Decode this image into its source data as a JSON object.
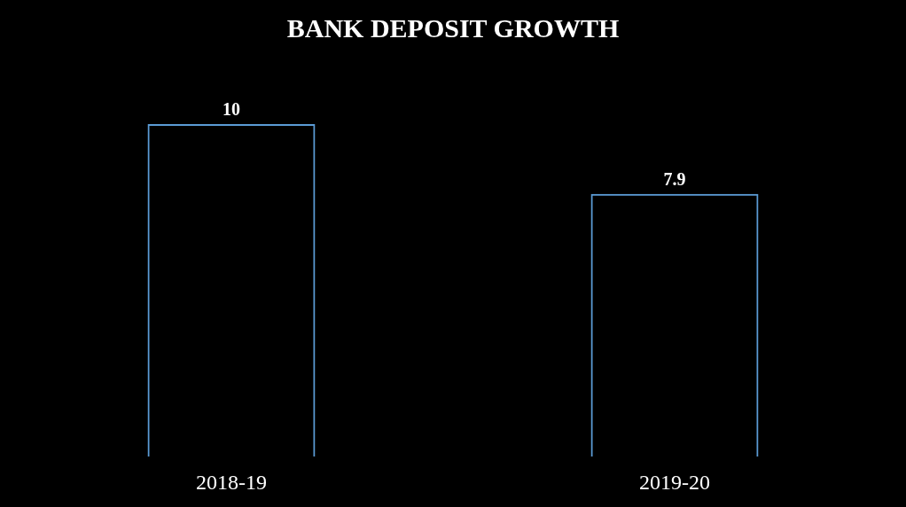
{
  "chart_data": {
    "type": "bar",
    "title": "BANK DEPOSIT GROWTH",
    "categories": [
      "2018-19",
      "2019-20"
    ],
    "values": [
      10,
      7.9
    ],
    "color": "#5b9bd5",
    "ylim": [
      0,
      10
    ],
    "data_labels": true
  }
}
